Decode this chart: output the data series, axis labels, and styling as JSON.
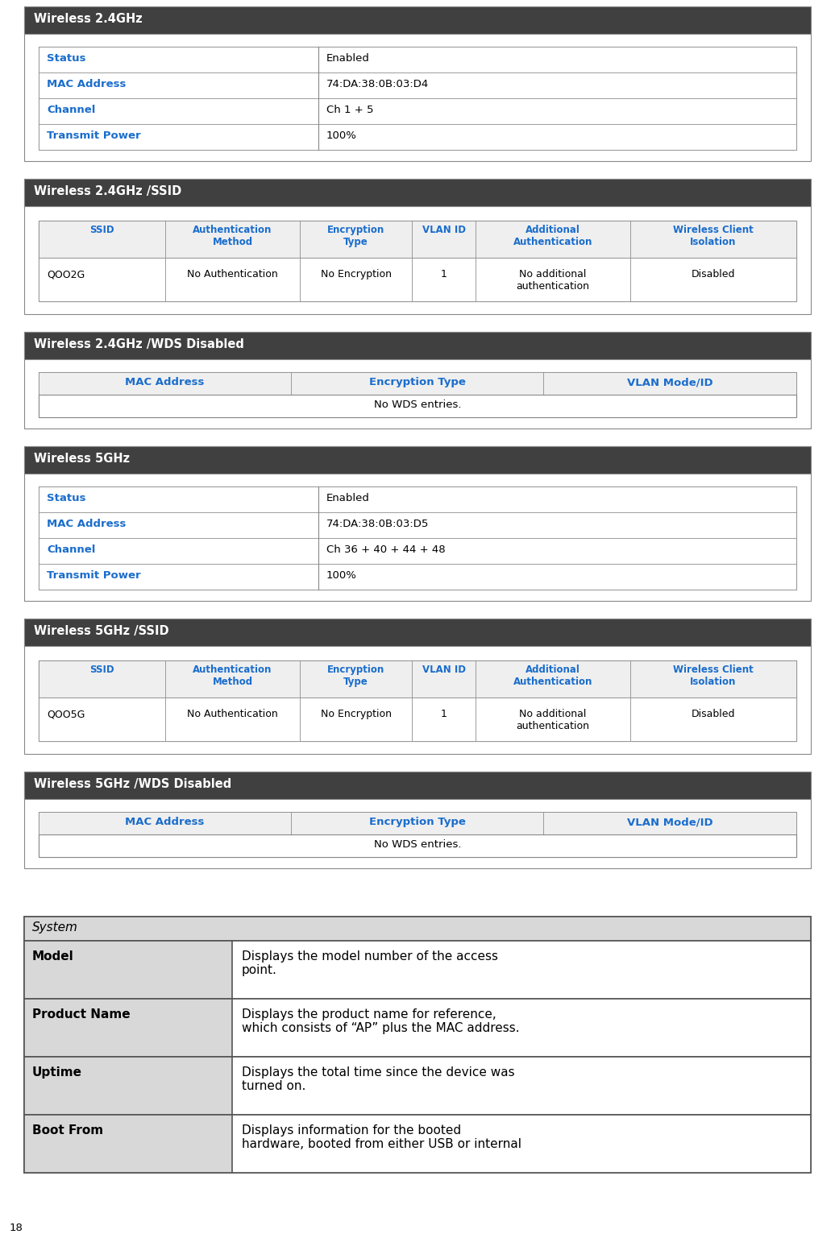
{
  "bg_color": "#ffffff",
  "page_num": "18",
  "dark_header_color": "#404040",
  "light_header_color": "#d8d8d8",
  "blue_text_color": "#1a6dcc",
  "border_color": "#888888",
  "cell_bg_even": "#efefef",
  "cell_bg_white": "#ffffff",
  "sections": [
    {
      "type": "key_value",
      "title": "Wireless 2.4GHz",
      "rows": [
        {
          "key": "Status",
          "value": "Enabled"
        },
        {
          "key": "MAC Address",
          "value": "74:DA:38:0B:03:D4"
        },
        {
          "key": "Channel",
          "value": "Ch 1 + 5"
        },
        {
          "key": "Transmit Power",
          "value": "100%"
        }
      ]
    },
    {
      "type": "ssid_table",
      "title": "Wireless 2.4GHz /SSID",
      "headers": [
        "SSID",
        "Authentication\nMethod",
        "Encryption\nType",
        "VLAN ID",
        "Additional\nAuthentication",
        "Wireless Client\nIsolation"
      ],
      "rows": [
        [
          "QOO2G",
          "No Authentication",
          "No Encryption",
          "1",
          "No additional\nauthentication",
          "Disabled"
        ]
      ]
    },
    {
      "type": "wds_table",
      "title": "Wireless 2.4GHz /WDS Disabled",
      "headers": [
        "MAC Address",
        "Encryption Type",
        "VLAN Mode/ID"
      ],
      "no_entries": "No WDS entries."
    },
    {
      "type": "key_value",
      "title": "Wireless 5GHz",
      "rows": [
        {
          "key": "Status",
          "value": "Enabled"
        },
        {
          "key": "MAC Address",
          "value": "74:DA:38:0B:03:D5"
        },
        {
          "key": "Channel",
          "value": "Ch 36 + 40 + 44 + 48"
        },
        {
          "key": "Transmit Power",
          "value": "100%"
        }
      ]
    },
    {
      "type": "ssid_table",
      "title": "Wireless 5GHz /SSID",
      "headers": [
        "SSID",
        "Authentication\nMethod",
        "Encryption\nType",
        "VLAN ID",
        "Additional\nAuthentication",
        "Wireless Client\nIsolation"
      ],
      "rows": [
        [
          "QOO5G",
          "No Authentication",
          "No Encryption",
          "1",
          "No additional\nauthentication",
          "Disabled"
        ]
      ]
    },
    {
      "type": "wds_table",
      "title": "Wireless 5GHz /WDS Disabled",
      "headers": [
        "MAC Address",
        "Encryption Type",
        "VLAN Mode/ID"
      ],
      "no_entries": "No WDS entries."
    }
  ],
  "bottom_table": {
    "title": "System",
    "rows": [
      {
        "key": "Model",
        "value": "Displays the model number of the access\npoint."
      },
      {
        "key": "Product Name",
        "value": "Displays the product name for reference,\nwhich consists of “AP” plus the MAC address."
      },
      {
        "key": "Uptime",
        "value": "Displays the total time since the device was\nturned on."
      },
      {
        "key": "Boot From",
        "value": "Displays information for the booted\nhardware, booted from either USB or internal"
      }
    ]
  }
}
